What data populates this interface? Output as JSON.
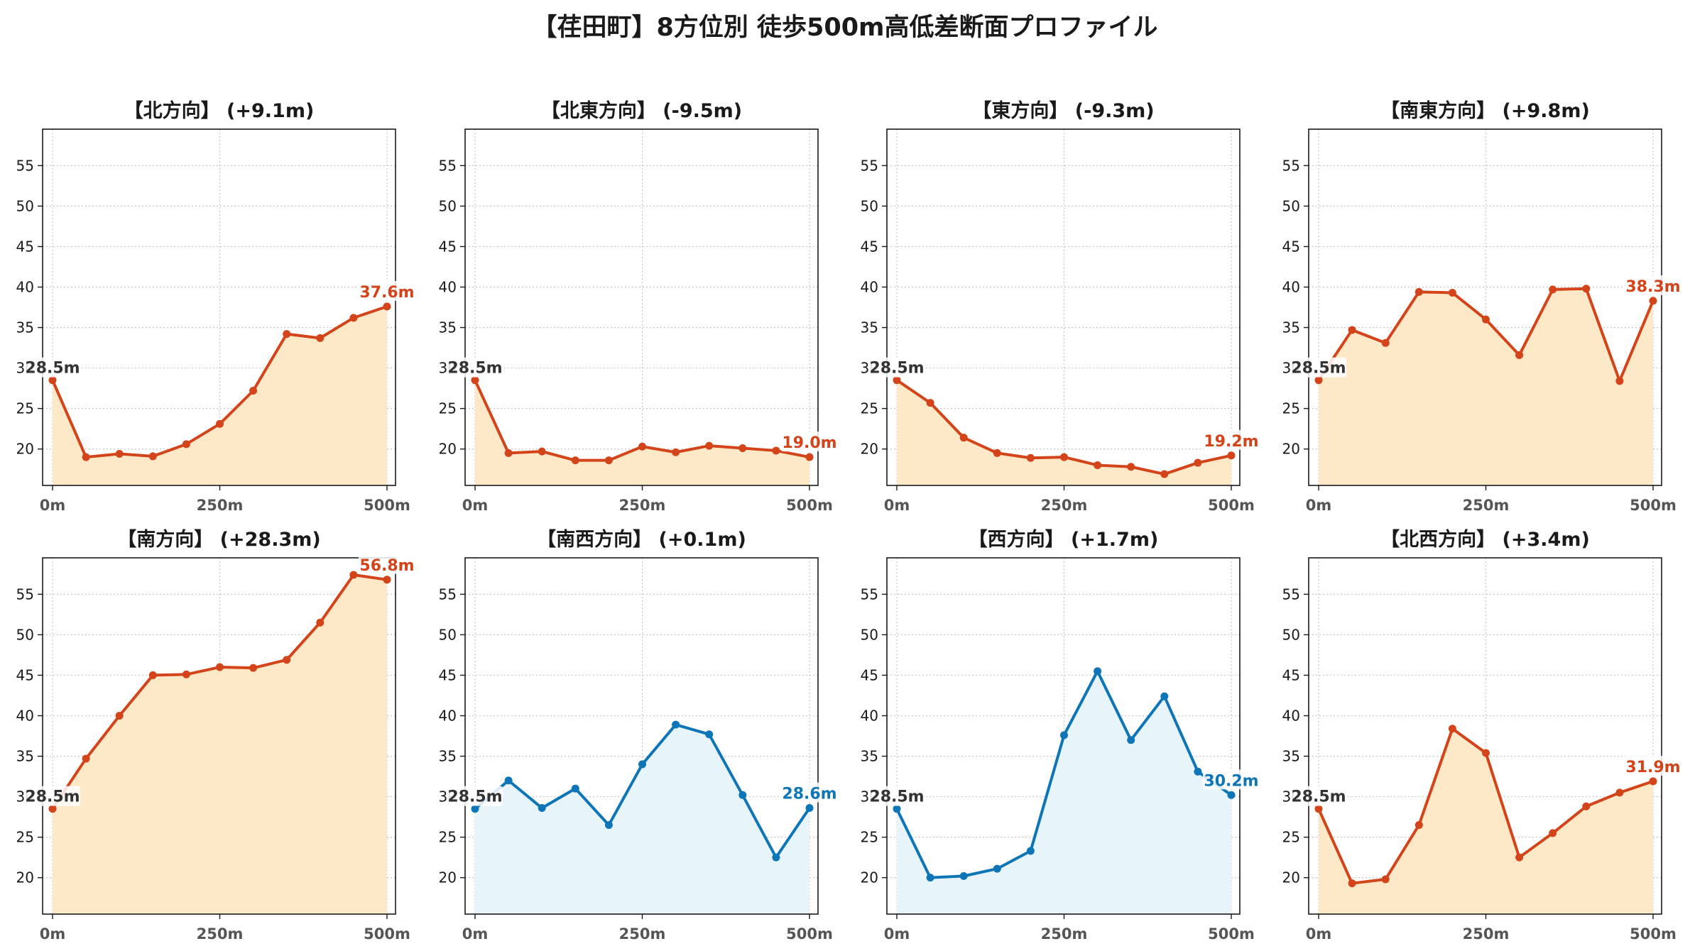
{
  "page": {
    "title": "【荏田町】8方位別 徒歩500m高低差断面プロファイル"
  },
  "colors": {
    "up": "#d4441a",
    "up_fill": "#fde8c8",
    "down": "#0e75b7",
    "down_fill": "#e7f5fb",
    "start_label": "#333333",
    "grid": "#c8c8c8",
    "tick": "#555555"
  },
  "chart_data": [
    {
      "type": "area",
      "title": "【北方向】 (+9.1m)",
      "color": "up",
      "x": [
        0,
        50,
        100,
        150,
        200,
        250,
        300,
        350,
        400,
        450,
        500
      ],
      "x_ticks": [
        "0m",
        "250m",
        "500m"
      ],
      "x_tick_values": [
        0,
        250,
        500
      ],
      "y": [
        28.5,
        19.0,
        19.4,
        19.1,
        20.6,
        23.1,
        27.2,
        34.2,
        33.7,
        36.2,
        37.6
      ],
      "ylim": [
        15.5,
        59.5
      ],
      "y_ticks": [
        20,
        25,
        30,
        35,
        40,
        45,
        50,
        55
      ],
      "start_label": "28.5m",
      "end_label": "37.6m",
      "grid": true
    },
    {
      "type": "area",
      "title": "【北東方向】 (-9.5m)",
      "color": "up",
      "x": [
        0,
        50,
        100,
        150,
        200,
        250,
        300,
        350,
        400,
        450,
        500
      ],
      "x_ticks": [
        "0m",
        "250m",
        "500m"
      ],
      "x_tick_values": [
        0,
        250,
        500
      ],
      "y": [
        28.5,
        19.5,
        19.7,
        18.6,
        18.6,
        20.3,
        19.6,
        20.4,
        20.1,
        19.8,
        19.0
      ],
      "ylim": [
        15.5,
        59.5
      ],
      "y_ticks": [
        20,
        25,
        30,
        35,
        40,
        45,
        50,
        55
      ],
      "start_label": "28.5m",
      "end_label": "19.0m",
      "grid": true
    },
    {
      "type": "area",
      "title": "【東方向】 (-9.3m)",
      "color": "up",
      "x": [
        0,
        50,
        100,
        150,
        200,
        250,
        300,
        350,
        400,
        450,
        500
      ],
      "x_ticks": [
        "0m",
        "250m",
        "500m"
      ],
      "x_tick_values": [
        0,
        250,
        500
      ],
      "y": [
        28.5,
        25.7,
        21.4,
        19.5,
        18.9,
        19.0,
        18.0,
        17.8,
        16.9,
        18.3,
        19.2
      ],
      "ylim": [
        15.5,
        59.5
      ],
      "y_ticks": [
        20,
        25,
        30,
        35,
        40,
        45,
        50,
        55
      ],
      "start_label": "28.5m",
      "end_label": "19.2m",
      "grid": true
    },
    {
      "type": "area",
      "title": "【南東方向】 (+9.8m)",
      "color": "up",
      "x": [
        0,
        50,
        100,
        150,
        200,
        250,
        300,
        350,
        400,
        450,
        500
      ],
      "x_ticks": [
        "0m",
        "250m",
        "500m"
      ],
      "x_tick_values": [
        0,
        250,
        500
      ],
      "y": [
        28.5,
        34.7,
        33.1,
        39.4,
        39.3,
        36.0,
        31.6,
        39.7,
        39.8,
        28.4,
        38.3
      ],
      "ylim": [
        15.5,
        59.5
      ],
      "y_ticks": [
        20,
        25,
        30,
        35,
        40,
        45,
        50,
        55
      ],
      "start_label": "28.5m",
      "end_label": "38.3m",
      "grid": true
    },
    {
      "type": "area",
      "title": "【南方向】 (+28.3m)",
      "color": "up",
      "x": [
        0,
        50,
        100,
        150,
        200,
        250,
        300,
        350,
        400,
        450,
        500
      ],
      "x_ticks": [
        "0m",
        "250m",
        "500m"
      ],
      "x_tick_values": [
        0,
        250,
        500
      ],
      "y": [
        28.5,
        34.7,
        40.0,
        45.0,
        45.1,
        46.0,
        45.9,
        46.9,
        51.5,
        57.4,
        56.8
      ],
      "ylim": [
        15.5,
        59.5
      ],
      "y_ticks": [
        20,
        25,
        30,
        35,
        40,
        45,
        50,
        55
      ],
      "start_label": "28.5m",
      "end_label": "56.8m",
      "grid": true
    },
    {
      "type": "area",
      "title": "【南西方向】 (+0.1m)",
      "color": "down",
      "x": [
        0,
        50,
        100,
        150,
        200,
        250,
        300,
        350,
        400,
        450,
        500
      ],
      "x_ticks": [
        "0m",
        "250m",
        "500m"
      ],
      "x_tick_values": [
        0,
        250,
        500
      ],
      "y": [
        28.5,
        32.0,
        28.6,
        31.0,
        26.5,
        34.0,
        38.9,
        37.7,
        30.2,
        22.5,
        28.6
      ],
      "ylim": [
        15.5,
        59.5
      ],
      "y_ticks": [
        20,
        25,
        30,
        35,
        40,
        45,
        50,
        55
      ],
      "start_label": "28.5m",
      "end_label": "28.6m",
      "grid": true
    },
    {
      "type": "area",
      "title": "【西方向】 (+1.7m)",
      "color": "down",
      "x": [
        0,
        50,
        100,
        150,
        200,
        250,
        300,
        350,
        400,
        450,
        500
      ],
      "x_ticks": [
        "0m",
        "250m",
        "500m"
      ],
      "x_tick_values": [
        0,
        250,
        500
      ],
      "y": [
        28.5,
        20.0,
        20.2,
        21.1,
        23.3,
        37.6,
        45.5,
        37.0,
        42.4,
        33.1,
        30.2
      ],
      "ylim": [
        15.5,
        59.5
      ],
      "y_ticks": [
        20,
        25,
        30,
        35,
        40,
        45,
        50,
        55
      ],
      "start_label": "28.5m",
      "end_label": "30.2m",
      "grid": true
    },
    {
      "type": "area",
      "title": "【北西方向】 (+3.4m)",
      "color": "up",
      "x": [
        0,
        50,
        100,
        150,
        200,
        250,
        300,
        350,
        400,
        450,
        500
      ],
      "x_ticks": [
        "0m",
        "250m",
        "500m"
      ],
      "x_tick_values": [
        0,
        250,
        500
      ],
      "y": [
        28.5,
        19.3,
        19.8,
        26.5,
        38.4,
        35.4,
        22.5,
        25.5,
        28.8,
        30.5,
        31.9
      ],
      "ylim": [
        15.5,
        59.5
      ],
      "y_ticks": [
        20,
        25,
        30,
        35,
        40,
        45,
        50,
        55
      ],
      "start_label": "28.5m",
      "end_label": "31.9m",
      "grid": true
    }
  ]
}
